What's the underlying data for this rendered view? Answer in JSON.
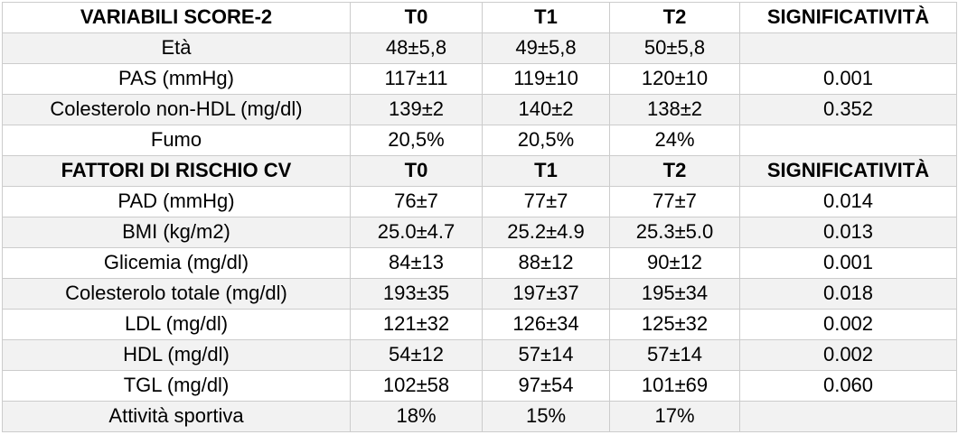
{
  "table": {
    "rows": [
      {
        "type": "header",
        "cells": [
          "VARIABILI SCORE-2",
          "T0",
          "T1",
          "T2",
          "SIGNIFICATIVITÀ"
        ]
      },
      {
        "type": "data",
        "cells": [
          "Età",
          "48±5,8",
          "49±5,8",
          "50±5,8",
          ""
        ]
      },
      {
        "type": "data",
        "cells": [
          "PAS (mmHg)",
          "117±11",
          "119±10",
          "120±10",
          "0.001"
        ]
      },
      {
        "type": "data",
        "cells": [
          "Colesterolo non-HDL (mg/dl)",
          "139±2",
          "140±2",
          "138±2",
          "0.352"
        ]
      },
      {
        "type": "data",
        "cells": [
          "Fumo",
          "20,5%",
          "20,5%",
          "24%",
          ""
        ]
      },
      {
        "type": "header",
        "cells": [
          "FATTORI DI RISCHIO CV",
          "T0",
          "T1",
          "T2",
          "SIGNIFICATIVITÀ"
        ]
      },
      {
        "type": "data",
        "cells": [
          "PAD (mmHg)",
          "76±7",
          "77±7",
          "77±7",
          "0.014"
        ]
      },
      {
        "type": "data",
        "cells": [
          "BMI (kg/m2)",
          "25.0±4.7",
          "25.2±4.9",
          "25.3±5.0",
          "0.013"
        ]
      },
      {
        "type": "data",
        "cells": [
          "Glicemia (mg/dl)",
          "84±13",
          "88±12",
          "90±12",
          "0.001"
        ]
      },
      {
        "type": "data",
        "cells": [
          "Colesterolo totale (mg/dl)",
          "193±35",
          "197±37",
          "195±34",
          "0.018"
        ]
      },
      {
        "type": "data",
        "cells": [
          "LDL (mg/dl)",
          "121±32",
          "126±34",
          "125±32",
          "0.002"
        ]
      },
      {
        "type": "data",
        "cells": [
          "HDL (mg/dl)",
          "54±12",
          "57±14",
          "57±14",
          "0.002"
        ]
      },
      {
        "type": "data",
        "cells": [
          "TGL (mg/dl)",
          "102±58",
          "97±54",
          "101±69",
          "0.060"
        ]
      },
      {
        "type": "data",
        "cells": [
          "Attività sportiva",
          "18%",
          "15%",
          "17%",
          ""
        ]
      }
    ],
    "zebra_color": "#f2f2f2",
    "grid_color": "#cccccc"
  }
}
